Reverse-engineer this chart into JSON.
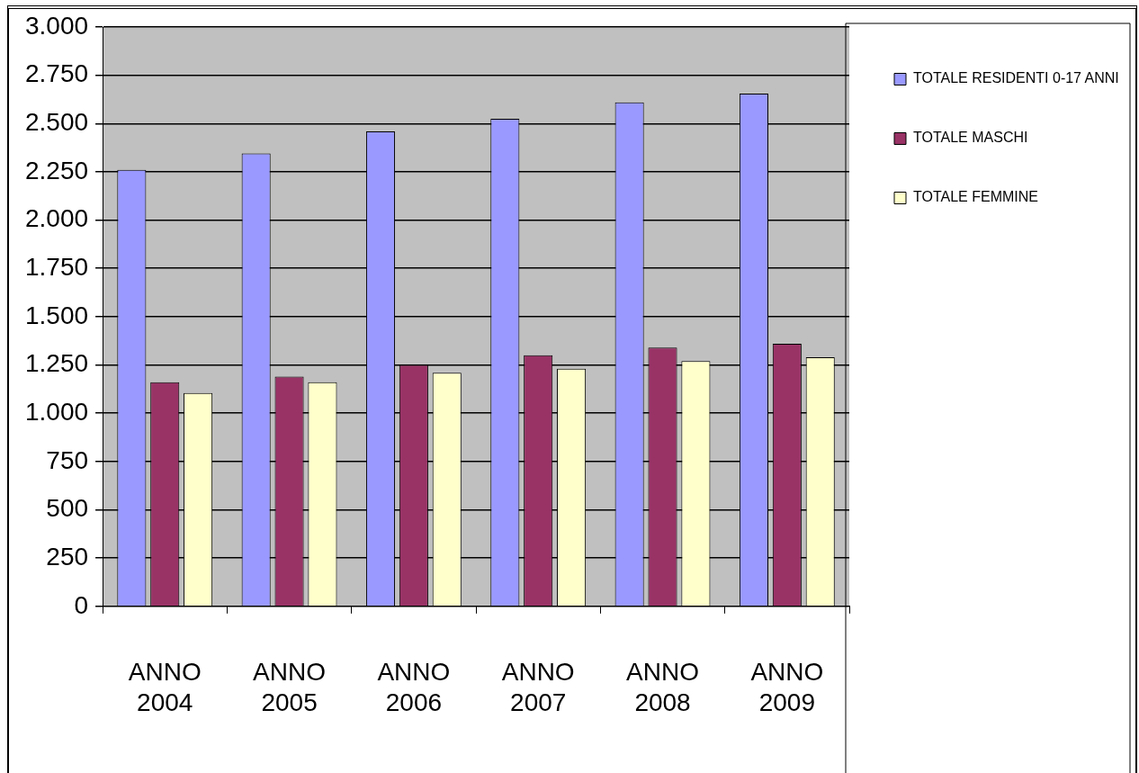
{
  "chart_data": {
    "type": "bar",
    "categories": [
      "ANNO 2004",
      "ANNO 2005",
      "ANNO 2006",
      "ANNO 2007",
      "ANNO 2008",
      "ANNO 2009"
    ],
    "series": [
      {
        "name": "TOTALE RESIDENTI 0-17 ANNI",
        "color": "#9999ff",
        "values": [
          2260,
          2345,
          2460,
          2525,
          2610,
          2655
        ]
      },
      {
        "name": "TOTALE MASCHI",
        "color": "#993366",
        "values": [
          1160,
          1190,
          1250,
          1300,
          1340,
          1360
        ]
      },
      {
        "name": "TOTALE FEMMINE",
        "color": "#ffffcc",
        "values": [
          1105,
          1160,
          1210,
          1230,
          1270,
          1290
        ]
      }
    ],
    "ylim": [
      0,
      3000
    ],
    "yticks": [
      {
        "value": 0,
        "label": "0"
      },
      {
        "value": 250,
        "label": "250"
      },
      {
        "value": 500,
        "label": "500"
      },
      {
        "value": 750,
        "label": "750"
      },
      {
        "value": 1000,
        "label": "1.000"
      },
      {
        "value": 1250,
        "label": "1.250"
      },
      {
        "value": 1500,
        "label": "1.500"
      },
      {
        "value": 1750,
        "label": "1.750"
      },
      {
        "value": 2000,
        "label": "2.000"
      },
      {
        "value": 2250,
        "label": "2.250"
      },
      {
        "value": 2500,
        "label": "2.500"
      },
      {
        "value": 2750,
        "label": "2.750"
      },
      {
        "value": 3000,
        "label": "3.000"
      }
    ],
    "grid": "y",
    "legend": "top right"
  }
}
